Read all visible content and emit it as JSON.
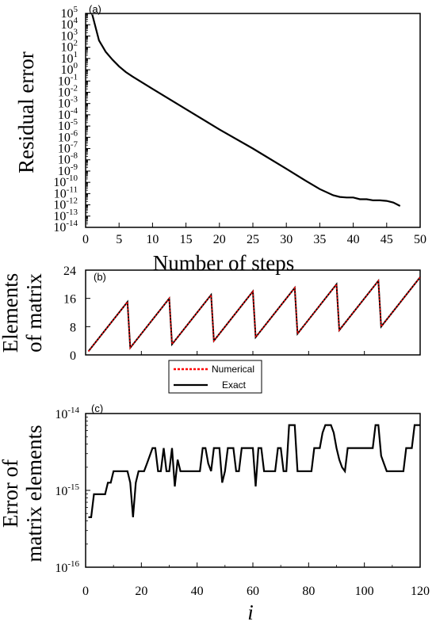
{
  "chart_data": [
    {
      "panel": "(a)",
      "type": "line",
      "xlabel": "Number of steps",
      "ylabel": "Residual error",
      "xlim": [
        0,
        50
      ],
      "ylim_exponent": [
        -14,
        5
      ],
      "y_scale": "log",
      "xticks": [
        "0",
        "5",
        "10",
        "15",
        "20",
        "25",
        "30",
        "35",
        "40",
        "45",
        "50"
      ],
      "ytick_base": "10",
      "ytick_exponents": [
        "5",
        "4",
        "3",
        "2",
        "1",
        "0",
        "-1",
        "-2",
        "-3",
        "-4",
        "-5",
        "-6",
        "-7",
        "-8",
        "-9",
        "-10",
        "-11",
        "-12",
        "-13",
        "-14"
      ],
      "series": [
        {
          "color": "#000000",
          "x": [
            1,
            2,
            3,
            4,
            5,
            6,
            7,
            10,
            15,
            20,
            25,
            30,
            33,
            35,
            37,
            38,
            39,
            40,
            41,
            42,
            43,
            44,
            45,
            46,
            47
          ],
          "log10_y": [
            4.9,
            2.6,
            1.6,
            0.9,
            0.3,
            -0.2,
            -0.6,
            -1.7,
            -3.5,
            -5.3,
            -7.0,
            -8.8,
            -9.9,
            -10.6,
            -11.15,
            -11.3,
            -11.35,
            -11.35,
            -11.5,
            -11.5,
            -11.6,
            -11.6,
            -11.65,
            -11.8,
            -12.1
          ]
        }
      ]
    },
    {
      "panel": "(b)",
      "type": "line",
      "ylabel": "Elements\nof matrix",
      "xlim": [
        0,
        120
      ],
      "ylim": [
        0,
        24
      ],
      "yticks": [
        "0",
        "8",
        "16",
        "24"
      ],
      "legend": {
        "placement": "bottom-center",
        "entries": [
          {
            "name": "Numerical",
            "color": "#ff0000",
            "style": "dotted"
          },
          {
            "name": "Exact",
            "color": "#000000",
            "style": "solid"
          }
        ]
      },
      "series": [
        {
          "name": "Exact",
          "color": "#000000",
          "x": [
            1,
            15,
            16,
            30,
            31,
            45,
            46,
            60,
            61,
            75,
            76,
            90,
            91,
            105,
            106,
            120
          ],
          "y": [
            1,
            15,
            2,
            16,
            3,
            17,
            4,
            18,
            5,
            19,
            6,
            20,
            7,
            21,
            8,
            22
          ]
        },
        {
          "name": "Numerical",
          "color": "#ff0000",
          "x": [
            1,
            15,
            16,
            30,
            31,
            45,
            46,
            60,
            61,
            75,
            76,
            90,
            91,
            105,
            106,
            120
          ],
          "y": [
            1,
            15,
            2,
            16,
            3,
            17,
            4,
            18,
            5,
            19,
            6,
            20,
            7,
            21,
            8,
            22
          ]
        }
      ]
    },
    {
      "panel": "(c)",
      "type": "line",
      "xlabel": "i",
      "ylabel": "Error of\nmatrix elements",
      "xlim": [
        0,
        120
      ],
      "y_scale": "log",
      "ylim_exponent": [
        -16,
        -14
      ],
      "xticks": [
        "0",
        "20",
        "40",
        "60",
        "80",
        "100",
        "120"
      ],
      "ytick_base": "10",
      "ytick_exponents": [
        "-14",
        "-15",
        "-16"
      ],
      "series": [
        {
          "color": "#000000",
          "x": [
            1,
            2,
            3,
            4,
            5,
            6,
            7,
            8,
            9,
            10,
            11,
            12,
            13,
            14,
            15,
            16,
            17,
            18,
            19,
            20,
            21,
            22,
            23,
            24,
            25,
            26,
            27,
            28,
            29,
            30,
            31,
            32,
            33,
            34,
            35,
            36,
            37,
            38,
            39,
            40,
            41,
            42,
            43,
            44,
            45,
            46,
            47,
            48,
            49,
            50,
            51,
            52,
            53,
            54,
            55,
            56,
            57,
            58,
            59,
            60,
            61,
            62,
            63,
            64,
            65,
            66,
            67,
            68,
            69,
            70,
            71,
            72,
            73,
            74,
            75,
            76,
            77,
            78,
            79,
            80,
            81,
            82,
            83,
            84,
            85,
            86,
            87,
            88,
            89,
            90,
            91,
            92,
            93,
            94,
            95,
            96,
            97,
            98,
            99,
            100,
            101,
            102,
            103,
            104,
            105,
            106,
            107,
            108,
            109,
            110,
            111,
            112,
            113,
            114,
            115,
            116,
            117,
            118,
            119,
            120
          ],
          "y_exp": [
            -15.35,
            -15.35,
            -15.05,
            -15.05,
            -15.05,
            -15.05,
            -15.05,
            -14.9,
            -14.9,
            -14.75,
            -14.75,
            -14.75,
            -14.75,
            -14.75,
            -14.75,
            -14.9,
            -15.35,
            -14.9,
            -14.75,
            -14.75,
            -14.75,
            -14.65,
            -14.55,
            -14.45,
            -14.45,
            -14.75,
            -14.75,
            -14.45,
            -14.75,
            -14.75,
            -14.45,
            -14.95,
            -14.6,
            -14.75,
            -14.75,
            -14.75,
            -14.75,
            -14.75,
            -14.75,
            -14.75,
            -14.75,
            -14.45,
            -14.45,
            -14.65,
            -14.75,
            -14.45,
            -14.45,
            -14.45,
            -14.9,
            -14.75,
            -14.45,
            -14.45,
            -14.45,
            -14.75,
            -14.75,
            -14.45,
            -14.45,
            -14.45,
            -14.45,
            -14.45,
            -14.95,
            -14.45,
            -14.45,
            -14.75,
            -14.75,
            -14.75,
            -14.75,
            -14.75,
            -14.45,
            -14.45,
            -14.75,
            -14.75,
            -14.15,
            -14.15,
            -14.15,
            -14.75,
            -14.75,
            -14.75,
            -14.75,
            -14.75,
            -14.75,
            -14.45,
            -14.45,
            -14.45,
            -14.25,
            -14.15,
            -14.15,
            -14.15,
            -14.25,
            -14.45,
            -14.6,
            -14.7,
            -14.75,
            -14.45,
            -14.45,
            -14.45,
            -14.45,
            -14.45,
            -14.45,
            -14.45,
            -14.45,
            -14.45,
            -14.45,
            -14.15,
            -14.15,
            -14.55,
            -14.65,
            -14.75,
            -14.75,
            -14.75,
            -14.75,
            -14.75,
            -14.75,
            -14.75,
            -14.45,
            -14.45,
            -14.45,
            -14.15,
            -14.15,
            -14.15
          ]
        }
      ]
    }
  ]
}
